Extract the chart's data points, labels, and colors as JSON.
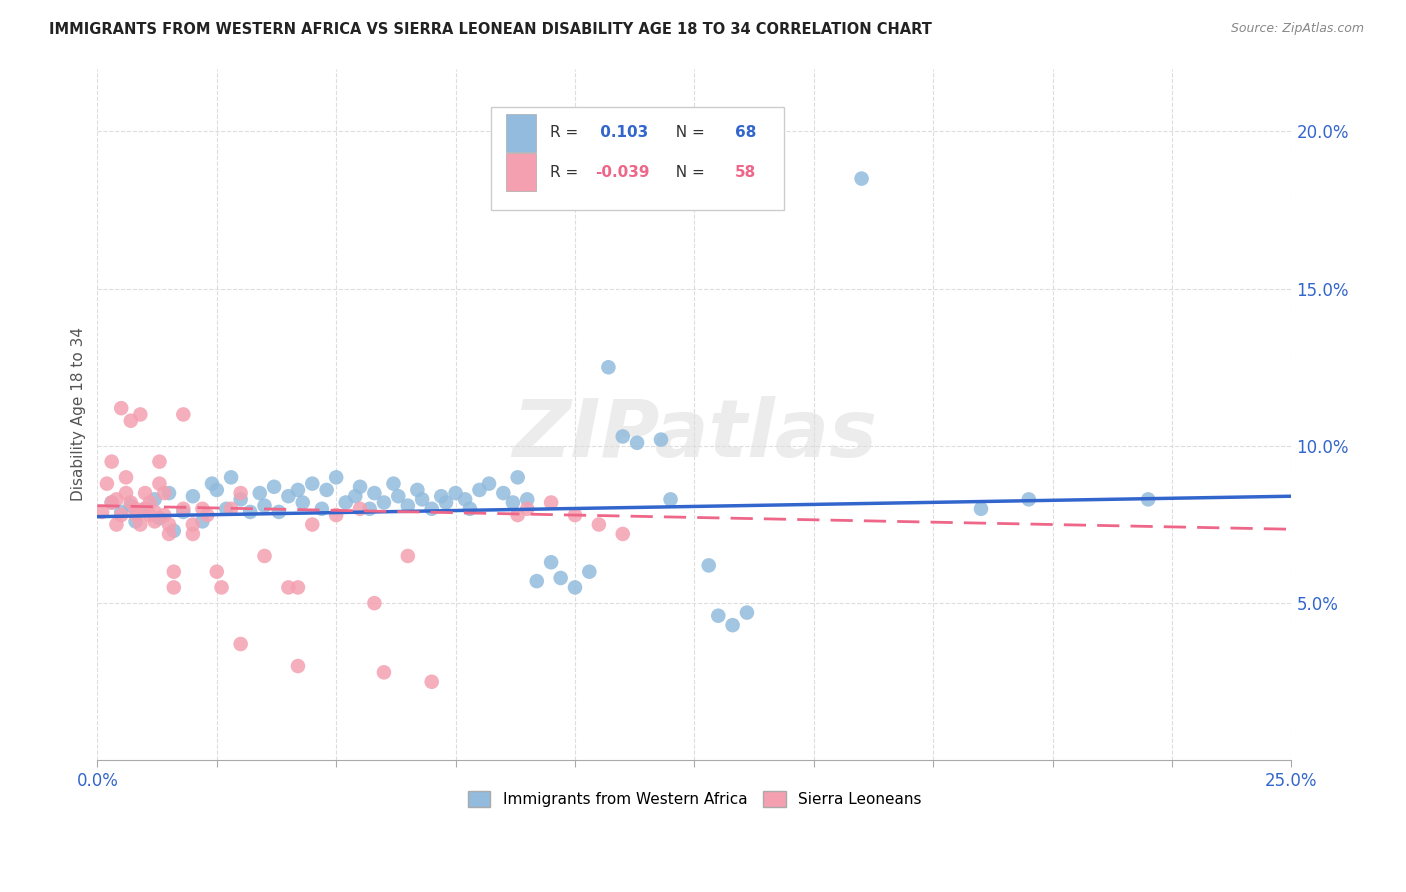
{
  "title": "IMMIGRANTS FROM WESTERN AFRICA VS SIERRA LEONEAN DISABILITY AGE 18 TO 34 CORRELATION CHART",
  "source": "Source: ZipAtlas.com",
  "ylabel": "Disability Age 18 to 34",
  "y_min": 0.0,
  "y_max": 0.22,
  "x_min": 0.0,
  "x_max": 0.25,
  "legend1_R": "0.103",
  "legend1_N": "68",
  "legend2_R": "-0.039",
  "legend2_N": "58",
  "blue_color": "#92BBDD",
  "pink_color": "#F4A0B0",
  "line_blue": "#3366CC",
  "line_pink": "#EE6688",
  "tick_color": "#3366CC",
  "watermark": "ZIPatlas",
  "blue_scatter": [
    [
      0.003,
      0.082
    ],
    [
      0.005,
      0.079
    ],
    [
      0.007,
      0.081
    ],
    [
      0.008,
      0.076
    ],
    [
      0.01,
      0.08
    ],
    [
      0.012,
      0.083
    ],
    [
      0.013,
      0.077
    ],
    [
      0.015,
      0.085
    ],
    [
      0.016,
      0.073
    ],
    [
      0.018,
      0.079
    ],
    [
      0.02,
      0.084
    ],
    [
      0.022,
      0.076
    ],
    [
      0.024,
      0.088
    ],
    [
      0.025,
      0.086
    ],
    [
      0.027,
      0.08
    ],
    [
      0.028,
      0.09
    ],
    [
      0.03,
      0.083
    ],
    [
      0.032,
      0.079
    ],
    [
      0.034,
      0.085
    ],
    [
      0.035,
      0.081
    ],
    [
      0.037,
      0.087
    ],
    [
      0.038,
      0.079
    ],
    [
      0.04,
      0.084
    ],
    [
      0.042,
      0.086
    ],
    [
      0.043,
      0.082
    ],
    [
      0.045,
      0.088
    ],
    [
      0.047,
      0.08
    ],
    [
      0.048,
      0.086
    ],
    [
      0.05,
      0.09
    ],
    [
      0.052,
      0.082
    ],
    [
      0.054,
      0.084
    ],
    [
      0.055,
      0.087
    ],
    [
      0.057,
      0.08
    ],
    [
      0.058,
      0.085
    ],
    [
      0.06,
      0.082
    ],
    [
      0.062,
      0.088
    ],
    [
      0.063,
      0.084
    ],
    [
      0.065,
      0.081
    ],
    [
      0.067,
      0.086
    ],
    [
      0.068,
      0.083
    ],
    [
      0.07,
      0.08
    ],
    [
      0.072,
      0.084
    ],
    [
      0.073,
      0.082
    ],
    [
      0.075,
      0.085
    ],
    [
      0.077,
      0.083
    ],
    [
      0.078,
      0.08
    ],
    [
      0.08,
      0.086
    ],
    [
      0.082,
      0.088
    ],
    [
      0.085,
      0.085
    ],
    [
      0.087,
      0.082
    ],
    [
      0.088,
      0.09
    ],
    [
      0.09,
      0.083
    ],
    [
      0.092,
      0.057
    ],
    [
      0.095,
      0.063
    ],
    [
      0.097,
      0.058
    ],
    [
      0.1,
      0.055
    ],
    [
      0.103,
      0.06
    ],
    [
      0.107,
      0.125
    ],
    [
      0.11,
      0.103
    ],
    [
      0.113,
      0.101
    ],
    [
      0.118,
      0.102
    ],
    [
      0.12,
      0.083
    ],
    [
      0.128,
      0.062
    ],
    [
      0.13,
      0.046
    ],
    [
      0.133,
      0.043
    ],
    [
      0.136,
      0.047
    ],
    [
      0.16,
      0.185
    ],
    [
      0.185,
      0.08
    ],
    [
      0.195,
      0.083
    ],
    [
      0.22,
      0.083
    ]
  ],
  "pink_scatter": [
    [
      0.001,
      0.079
    ],
    [
      0.002,
      0.088
    ],
    [
      0.003,
      0.082
    ],
    [
      0.003,
      0.095
    ],
    [
      0.004,
      0.075
    ],
    [
      0.004,
      0.083
    ],
    [
      0.005,
      0.078
    ],
    [
      0.005,
      0.112
    ],
    [
      0.006,
      0.09
    ],
    [
      0.006,
      0.085
    ],
    [
      0.007,
      0.108
    ],
    [
      0.007,
      0.082
    ],
    [
      0.008,
      0.08
    ],
    [
      0.008,
      0.078
    ],
    [
      0.009,
      0.075
    ],
    [
      0.009,
      0.11
    ],
    [
      0.01,
      0.085
    ],
    [
      0.01,
      0.08
    ],
    [
      0.011,
      0.078
    ],
    [
      0.011,
      0.082
    ],
    [
      0.012,
      0.079
    ],
    [
      0.012,
      0.076
    ],
    [
      0.013,
      0.095
    ],
    [
      0.013,
      0.088
    ],
    [
      0.014,
      0.085
    ],
    [
      0.014,
      0.078
    ],
    [
      0.015,
      0.072
    ],
    [
      0.015,
      0.075
    ],
    [
      0.016,
      0.06
    ],
    [
      0.016,
      0.055
    ],
    [
      0.018,
      0.11
    ],
    [
      0.018,
      0.08
    ],
    [
      0.02,
      0.075
    ],
    [
      0.02,
      0.072
    ],
    [
      0.022,
      0.08
    ],
    [
      0.023,
      0.078
    ],
    [
      0.025,
      0.06
    ],
    [
      0.026,
      0.055
    ],
    [
      0.028,
      0.08
    ],
    [
      0.03,
      0.085
    ],
    [
      0.03,
      0.037
    ],
    [
      0.035,
      0.065
    ],
    [
      0.04,
      0.055
    ],
    [
      0.042,
      0.055
    ],
    [
      0.042,
      0.03
    ],
    [
      0.045,
      0.075
    ],
    [
      0.05,
      0.078
    ],
    [
      0.055,
      0.08
    ],
    [
      0.058,
      0.05
    ],
    [
      0.06,
      0.028
    ],
    [
      0.065,
      0.065
    ],
    [
      0.07,
      0.025
    ],
    [
      0.088,
      0.078
    ],
    [
      0.09,
      0.08
    ],
    [
      0.095,
      0.082
    ],
    [
      0.1,
      0.078
    ],
    [
      0.105,
      0.075
    ],
    [
      0.11,
      0.072
    ]
  ],
  "blue_trendline": [
    [
      0.0,
      0.0775
    ],
    [
      0.25,
      0.084
    ]
  ],
  "pink_trendline": [
    [
      0.0,
      0.081
    ],
    [
      0.25,
      0.0735
    ]
  ]
}
